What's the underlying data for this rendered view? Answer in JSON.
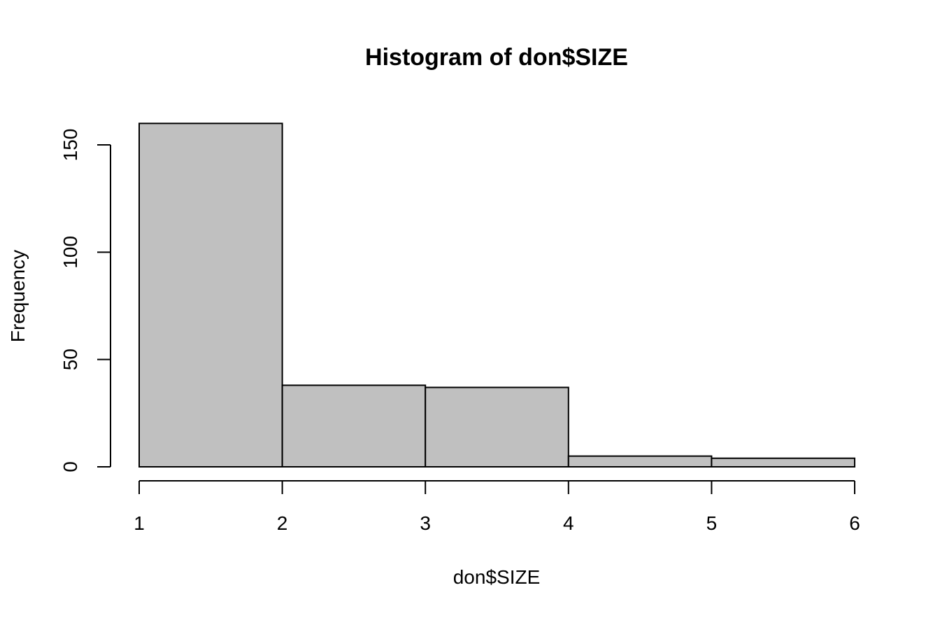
{
  "chart_data": {
    "type": "bar",
    "title": "Histogram of don$SIZE",
    "xlabel": "don$SIZE",
    "ylabel": "Frequency",
    "bins": [
      {
        "from": 1,
        "to": 2,
        "value": 160
      },
      {
        "from": 2,
        "to": 3,
        "value": 38
      },
      {
        "from": 3,
        "to": 4,
        "value": 37
      },
      {
        "from": 4,
        "to": 5,
        "value": 5
      },
      {
        "from": 5,
        "to": 6,
        "value": 4
      }
    ],
    "xlim": [
      1,
      6
    ],
    "ylim": [
      0,
      160
    ],
    "xticks": [
      "1",
      "2",
      "3",
      "4",
      "5",
      "6"
    ],
    "yticks": [
      "0",
      "50",
      "100",
      "150"
    ],
    "grid": false,
    "bar_fill": "#c0c0c0",
    "bar_edge": "#000000"
  }
}
